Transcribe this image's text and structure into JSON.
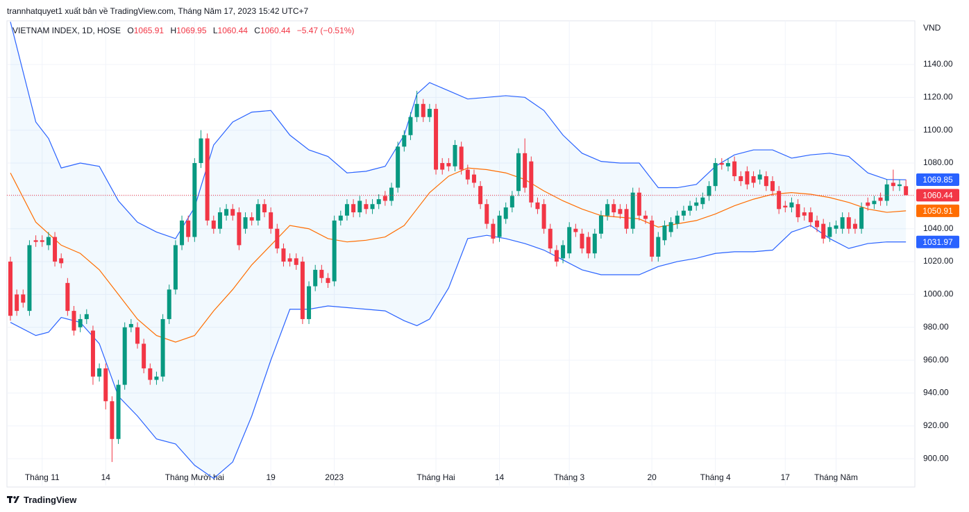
{
  "chart_data": {
    "type": "candlestick",
    "attribution": "trannhatquyet1 xuất bản về TradingView.com, Tháng Năm 17, 2023 15:42 UTC+7",
    "title": "VIETNAM INDEX, 1D, HOSE",
    "ohlc_labels": [
      "O",
      "H",
      "L",
      "C"
    ],
    "change": "−5.47 (−0.51%)",
    "unit": "VND",
    "brand": "TradingView",
    "categories": [
      null,
      null,
      null,
      null,
      null,
      "Tháng 11",
      null,
      null,
      null,
      null,
      null,
      null,
      null,
      null,
      null,
      "14",
      null,
      null,
      null,
      null,
      null,
      null,
      null,
      null,
      null,
      null,
      null,
      null,
      null,
      "Tháng Mười hai",
      null,
      null,
      null,
      null,
      null,
      null,
      null,
      null,
      null,
      null,
      null,
      "19",
      null,
      null,
      null,
      null,
      null,
      null,
      null,
      null,
      null,
      "2023",
      null,
      null,
      null,
      null,
      null,
      null,
      null,
      null,
      null,
      null,
      null,
      null,
      null,
      null,
      null,
      "Tháng Hai",
      null,
      null,
      null,
      null,
      null,
      null,
      null,
      null,
      null,
      "14",
      null,
      null,
      null,
      null,
      null,
      null,
      null,
      null,
      null,
      null,
      "Tháng 3",
      null,
      null,
      null,
      null,
      null,
      null,
      null,
      null,
      null,
      null,
      null,
      null,
      "20",
      null,
      null,
      null,
      null,
      null,
      null,
      null,
      null,
      null,
      "Tháng 4",
      null,
      null,
      null,
      null,
      null,
      null,
      null,
      null,
      null,
      null,
      "17",
      null,
      null,
      null,
      null,
      null,
      null,
      null,
      "Tháng Năm",
      null,
      null,
      null,
      null,
      null,
      null,
      null,
      null,
      null,
      null,
      null
    ],
    "open": [
      1020,
      1000,
      1000,
      990,
      1033,
      1033,
      1030,
      1035,
      1022,
      1007,
      990,
      980,
      985,
      978,
      950,
      955,
      935,
      912,
      945,
      980,
      980,
      970,
      955,
      948,
      950,
      985,
      1003,
      1030,
      1045,
      1035,
      1080,
      1095,
      1045,
      1040,
      1048,
      1052,
      1050,
      1040,
      1047,
      1045,
      1055,
      1050,
      1040,
      1028,
      1022,
      1022,
      1020,
      985,
      1005,
      1015,
      1010,
      1008,
      1045,
      1048,
      1055,
      1050,
      1055,
      1052,
      1055,
      1060,
      1057,
      1065,
      1090,
      1097,
      1108,
      1116,
      1108,
      1113,
      1080,
      1080,
      1078,
      1090,
      1076,
      1073,
      1066,
      1055,
      1043,
      1035,
      1046,
      1053,
      1063,
      1086,
      1081,
      1056,
      1055,
      1040,
      1027,
      1022,
      1025,
      1040,
      1037,
      1035,
      1025,
      1037,
      1048,
      1055,
      1052,
      1052,
      1040,
      1062,
      1048,
      1045,
      1023,
      1033,
      1038,
      1043,
      1048,
      1051,
      1054,
      1055,
      1060,
      1066,
      1080,
      1078,
      1081,
      1072,
      1075,
      1072,
      1070,
      1072,
      1069,
      1063,
      1054,
      1053,
      1055,
      1050,
      1050,
      1045,
      1043,
      1035,
      1040,
      1040,
      1047,
      1043,
      1040,
      1056,
      1055,
      1059,
      1057,
      1068,
      1066,
      1065.91
    ],
    "high": [
      1023,
      1003,
      1003,
      1033,
      1036,
      1036,
      1038,
      1038,
      1025,
      1010,
      993,
      988,
      991,
      981,
      958,
      958,
      938,
      948,
      983,
      985,
      983,
      973,
      958,
      953,
      988,
      1006,
      1033,
      1048,
      1048,
      1083,
      1100,
      1098,
      1048,
      1053,
      1055,
      1055,
      1053,
      1050,
      1050,
      1058,
      1058,
      1053,
      1043,
      1031,
      1025,
      1025,
      1023,
      1008,
      1018,
      1018,
      1013,
      1048,
      1051,
      1058,
      1058,
      1060,
      1058,
      1058,
      1061,
      1063,
      1068,
      1093,
      1100,
      1111,
      1124,
      1119,
      1116,
      1116,
      1083,
      1083,
      1094,
      1093,
      1079,
      1076,
      1069,
      1058,
      1046,
      1051,
      1056,
      1063,
      1089,
      1095,
      1084,
      1059,
      1058,
      1043,
      1030,
      1033,
      1044,
      1043,
      1040,
      1038,
      1040,
      1051,
      1058,
      1058,
      1055,
      1055,
      1065,
      1065,
      1051,
      1048,
      1038,
      1045,
      1047,
      1051,
      1054,
      1057,
      1059,
      1062,
      1069,
      1083,
      1083,
      1083,
      1084,
      1075,
      1078,
      1075,
      1076,
      1075,
      1072,
      1066,
      1057,
      1059,
      1058,
      1053,
      1053,
      1048,
      1046,
      1044,
      1045,
      1050,
      1050,
      1046,
      1056,
      1059,
      1060,
      1062,
      1070,
      1076,
      1070,
      1069.95
    ],
    "low": [
      984,
      987,
      992,
      987,
      1029,
      1029,
      1027,
      1017,
      1016,
      987,
      975,
      977,
      982,
      945,
      947,
      930,
      898,
      909,
      942,
      977,
      967,
      952,
      945,
      945,
      947,
      982,
      1000,
      1027,
      1032,
      1032,
      1077,
      1042,
      1037,
      1037,
      1045,
      1045,
      1027,
      1037,
      1042,
      1042,
      1047,
      1037,
      1025,
      1017,
      1017,
      1015,
      982,
      982,
      1002,
      1007,
      1004,
      1005,
      1042,
      1045,
      1047,
      1047,
      1049,
      1049,
      1052,
      1054,
      1054,
      1062,
      1087,
      1094,
      1105,
      1105,
      1105,
      1073,
      1073,
      1075,
      1075,
      1073,
      1067,
      1065,
      1052,
      1040,
      1031,
      1032,
      1043,
      1050,
      1060,
      1062,
      1053,
      1049,
      1037,
      1025,
      1017,
      1019,
      1022,
      1035,
      1025,
      1022,
      1022,
      1034,
      1045,
      1047,
      1046,
      1037,
      1037,
      1045,
      1043,
      1020,
      1020,
      1030,
      1035,
      1040,
      1045,
      1048,
      1051,
      1052,
      1057,
      1063,
      1076,
      1075,
      1069,
      1066,
      1064,
      1065,
      1067,
      1063,
      1060,
      1049,
      1050,
      1050,
      1044,
      1045,
      1041,
      1038,
      1031,
      1032,
      1037,
      1037,
      1037,
      1037,
      1037,
      1051,
      1052,
      1054,
      1054,
      1063,
      1063,
      1060.44
    ],
    "close": [
      987,
      990,
      995,
      1030,
      1032,
      1032,
      1035,
      1020,
      1019,
      990,
      978,
      985,
      988,
      950,
      955,
      935,
      912,
      945,
      980,
      982,
      970,
      955,
      948,
      950,
      985,
      1003,
      1030,
      1045,
      1035,
      1080,
      1095,
      1045,
      1040,
      1050,
      1052,
      1048,
      1030,
      1047,
      1045,
      1055,
      1050,
      1040,
      1028,
      1020,
      1020,
      1018,
      985,
      1005,
      1015,
      1010,
      1007,
      1045,
      1048,
      1055,
      1050,
      1057,
      1052,
      1055,
      1058,
      1057,
      1065,
      1090,
      1097,
      1108,
      1116,
      1108,
      1113,
      1076,
      1076,
      1078,
      1091,
      1076,
      1070,
      1068,
      1055,
      1043,
      1034,
      1048,
      1053,
      1060,
      1086,
      1065,
      1056,
      1052,
      1040,
      1028,
      1020,
      1030,
      1041,
      1038,
      1028,
      1025,
      1037,
      1048,
      1055,
      1050,
      1049,
      1040,
      1062,
      1048,
      1046,
      1023,
      1035,
      1042,
      1044,
      1048,
      1051,
      1054,
      1056,
      1059,
      1066,
      1080,
      1079,
      1080,
      1072,
      1069,
      1067,
      1068,
      1073,
      1066,
      1063,
      1052,
      1053,
      1056,
      1047,
      1048,
      1044,
      1041,
      1034,
      1041,
      1042,
      1047,
      1040,
      1040,
      1053,
      1054,
      1057,
      1057,
      1067,
      1066,
      1067,
      1060.44
    ],
    "up_color": "#089981",
    "down_color": "#f23645",
    "bands": {
      "x": [
        0,
        4,
        6,
        8,
        11,
        14,
        17,
        20,
        23,
        26,
        29,
        32,
        35,
        38,
        41,
        44,
        47,
        50,
        53,
        56,
        59,
        62,
        64,
        66,
        69,
        72,
        75,
        78,
        81,
        84,
        87,
        90,
        93,
        96,
        99,
        102,
        105,
        108,
        111,
        114,
        117,
        120,
        123,
        126,
        129,
        132,
        135,
        138,
        141
      ],
      "upper": [
        1166,
        1105,
        1095,
        1077,
        1080,
        1078,
        1057,
        1044,
        1038,
        1034,
        1053,
        1091,
        1105,
        1111,
        1112,
        1097,
        1088,
        1084,
        1074,
        1075,
        1078,
        1097,
        1122,
        1129,
        1124,
        1119,
        1120,
        1121,
        1120,
        1112,
        1097,
        1086,
        1081,
        1080,
        1080,
        1065,
        1065,
        1067,
        1078,
        1085,
        1088,
        1088,
        1083,
        1085,
        1086,
        1084,
        1074,
        1070,
        1069.85
      ],
      "basis": [
        1074,
        1044,
        1037,
        1030,
        1025,
        1015,
        1000,
        985,
        975,
        971,
        975,
        990,
        1003,
        1018,
        1030,
        1042,
        1040,
        1034,
        1032,
        1033,
        1035,
        1042,
        1052,
        1062,
        1072,
        1077,
        1076,
        1074,
        1070,
        1063,
        1057,
        1052,
        1048,
        1047,
        1046,
        1041,
        1043,
        1045,
        1049,
        1054,
        1058,
        1061,
        1062,
        1061,
        1059,
        1056,
        1052,
        1050,
        1050.91
      ],
      "lower": [
        983,
        975,
        977,
        986,
        983,
        970,
        938,
        926,
        912,
        909,
        896,
        888,
        898,
        926,
        960,
        991,
        991,
        993,
        992,
        991,
        990,
        984,
        981,
        985,
        1004,
        1034,
        1036,
        1034,
        1031,
        1027,
        1021,
        1015,
        1012,
        1012,
        1012,
        1017,
        1020,
        1022,
        1025,
        1026,
        1026,
        1027,
        1038,
        1042,
        1034,
        1028,
        1031,
        1032,
        1031.97
      ],
      "band_color": "#2962ff",
      "basis_color": "#ff6d00",
      "fill_color": "#2196f3"
    },
    "ylim": [
      883.6,
      1166.6
    ],
    "yticks": [
      {
        "value": 900,
        "label": "900.00"
      },
      {
        "value": 920,
        "label": "920.00"
      },
      {
        "value": 940,
        "label": "940.00"
      },
      {
        "value": 960,
        "label": "960.00"
      },
      {
        "value": 980,
        "label": "980.00"
      },
      {
        "value": 1000,
        "label": "1000.00"
      },
      {
        "value": 1020,
        "label": "1020.00"
      },
      {
        "value": 1040,
        "label": "1040.00"
      },
      {
        "value": 1060,
        "label": "1060.00"
      },
      {
        "value": 1080,
        "label": "1080.00"
      },
      {
        "value": 1100,
        "label": "1100.00"
      },
      {
        "value": 1120,
        "label": "1120.00"
      },
      {
        "value": 1140,
        "label": "1140.00"
      }
    ],
    "grid": true
  }
}
